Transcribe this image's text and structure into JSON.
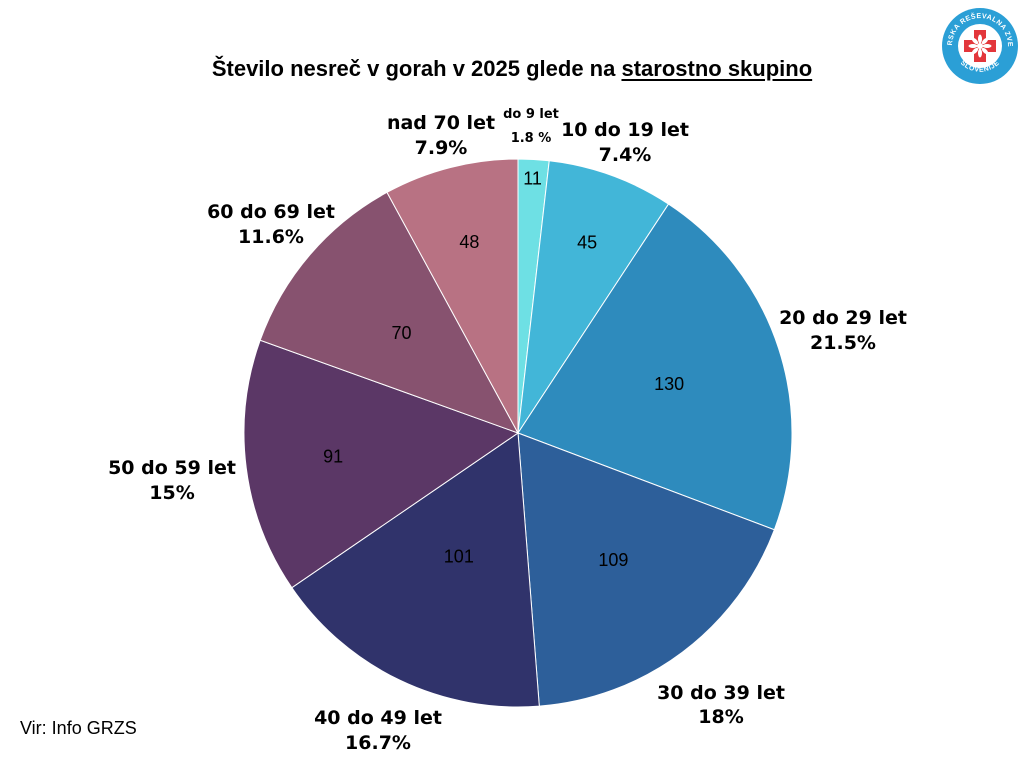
{
  "title": {
    "part1": "Število nesreč v gorah v 2025 glede na ",
    "part2": "starostno skupino"
  },
  "source": "Vir: Info GRZS",
  "logo": {
    "top_text": "GORSKA REŠEVALNA ZVEZA",
    "bottom_text": "SLOVENIJE",
    "ring_color": "#2b9fd6",
    "cross_color": "#e3363b"
  },
  "chart_data": {
    "type": "pie",
    "title": "Število nesreč v gorah v 2025 glede na starostno skupino",
    "slices": [
      {
        "category": "do 9 let",
        "value": 11,
        "percent": "1.8 %",
        "color": "#6ee0e4"
      },
      {
        "category": "10 do 19 let",
        "value": 45,
        "percent": "7.4%",
        "color": "#42b6d8"
      },
      {
        "category": "20 do 29 let",
        "value": 130,
        "percent": "21.5%",
        "color": "#2e8bbd"
      },
      {
        "category": "30 do 39 let",
        "value": 109,
        "percent": "18%",
        "color": "#2d5f9a"
      },
      {
        "category": "40 do 49 let",
        "value": 101,
        "percent": "16.7%",
        "color": "#30336b"
      },
      {
        "category": "50 do 59 let",
        "value": 91,
        "percent": "15%",
        "color": "#5b3766"
      },
      {
        "category": "60 do 69 let",
        "value": 70,
        "percent": "11.6%",
        "color": "#87526f"
      },
      {
        "category": "nad 70 let",
        "value": 48,
        "percent": "7.9%",
        "color": "#b87283"
      }
    ],
    "start_angle_deg": 0,
    "direction": "clockwise",
    "legend": "none",
    "value_labels": "inside",
    "category_labels": "outside"
  }
}
